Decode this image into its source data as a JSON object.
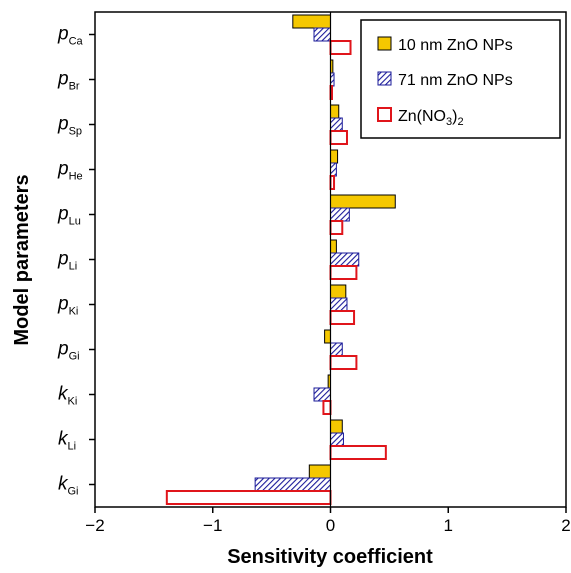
{
  "chart_data": {
    "type": "bar",
    "orientation": "horizontal",
    "title": "",
    "xlabel": "Sensitivity coefficient",
    "ylabel": "Model parameters",
    "xlim": [
      -2,
      2
    ],
    "xticks": [
      -2,
      -1,
      0,
      1,
      2
    ],
    "xtick_labels": [
      "−2",
      "−1",
      "0",
      "1",
      "2"
    ],
    "grid": false,
    "legend_position": "top-right",
    "categories": [
      {
        "main": "p",
        "sub": "Ca"
      },
      {
        "main": "p",
        "sub": "Br"
      },
      {
        "main": "p",
        "sub": "Sp"
      },
      {
        "main": "p",
        "sub": "He"
      },
      {
        "main": "p",
        "sub": "Lu"
      },
      {
        "main": "p",
        "sub": "Li"
      },
      {
        "main": "p",
        "sub": "Ki"
      },
      {
        "main": "p",
        "sub": "Gi"
      },
      {
        "main": "k",
        "sub": "Ki"
      },
      {
        "main": "k",
        "sub": "Li"
      },
      {
        "main": "k",
        "sub": "Gi"
      }
    ],
    "series": [
      {
        "name": "10 nm ZnO NPs",
        "style": "solid",
        "color": "#f5c800",
        "values": [
          -0.32,
          0.02,
          0.07,
          0.06,
          0.55,
          0.05,
          0.13,
          -0.05,
          -0.02,
          0.1,
          -0.18
        ]
      },
      {
        "name": "71 nm ZnO NPs",
        "style": "hatched",
        "color": "#1a1a9a",
        "values": [
          -0.14,
          0.03,
          0.1,
          0.05,
          0.16,
          0.24,
          0.14,
          0.1,
          -0.14,
          0.11,
          -0.64
        ]
      },
      {
        "name_parts": [
          "Zn(NO",
          "3",
          ")",
          "2"
        ],
        "style": "outline",
        "color": "#e0151b",
        "values": [
          0.17,
          0.01,
          0.14,
          0.03,
          0.1,
          0.22,
          0.2,
          0.22,
          -0.06,
          0.47,
          -1.39
        ]
      }
    ]
  }
}
